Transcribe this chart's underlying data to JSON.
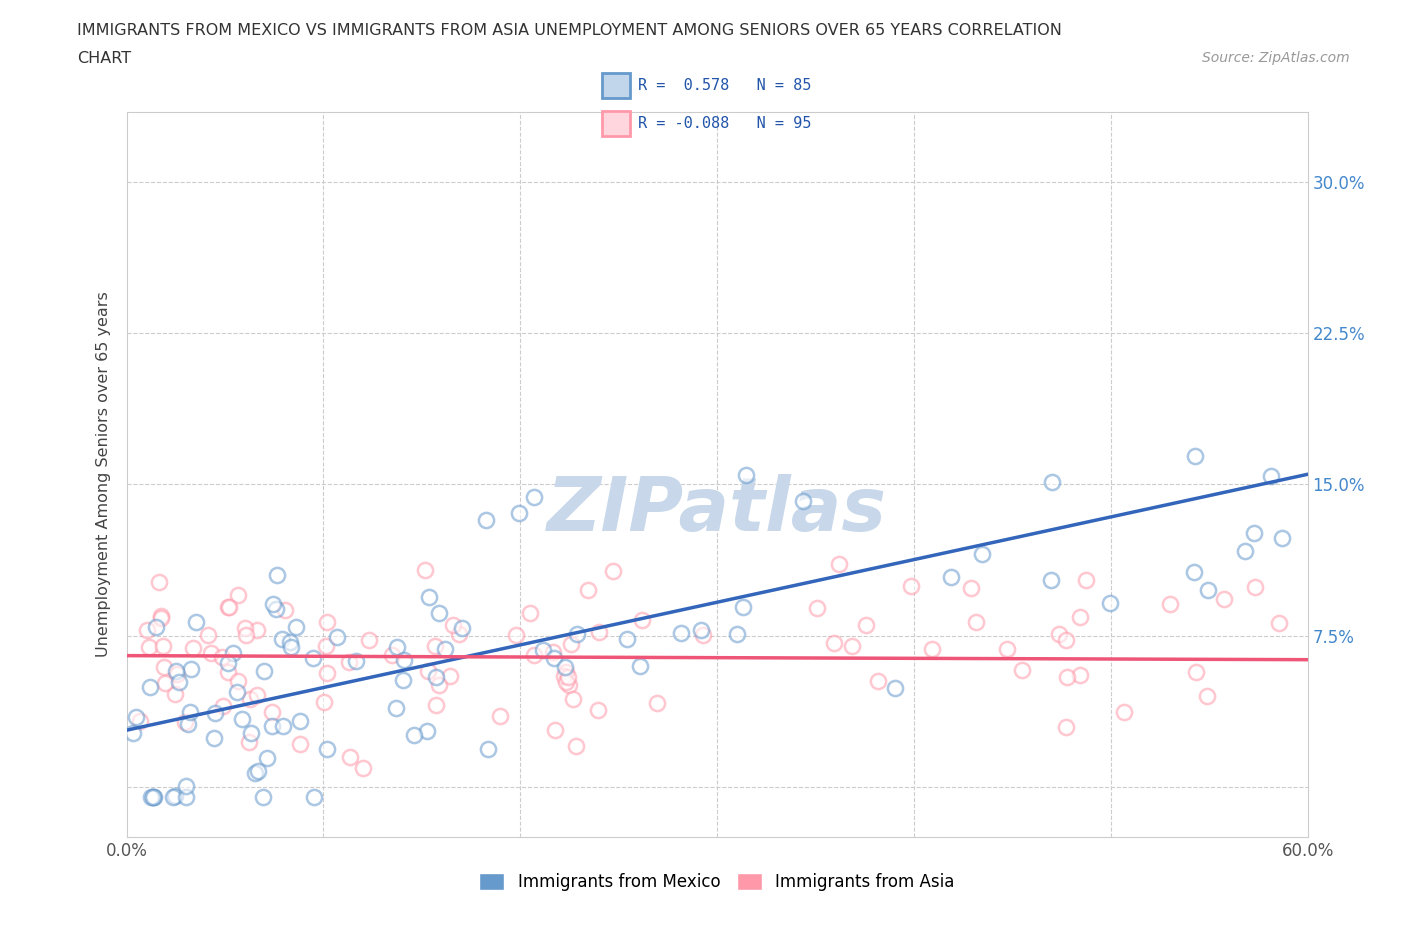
{
  "title_line1": "IMMIGRANTS FROM MEXICO VS IMMIGRANTS FROM ASIA UNEMPLOYMENT AMONG SENIORS OVER 65 YEARS CORRELATION",
  "title_line2": "CHART",
  "source_text": "Source: ZipAtlas.com",
  "ylabel": "Unemployment Among Seniors over 65 years",
  "xlim": [
    0.0,
    0.6
  ],
  "ylim": [
    -0.025,
    0.335
  ],
  "xticks": [
    0.0,
    0.1,
    0.2,
    0.3,
    0.4,
    0.5,
    0.6
  ],
  "xticklabels": [
    "0.0%",
    "",
    "",
    "",
    "",
    "",
    "60.0%"
  ],
  "yticks": [
    0.0,
    0.075,
    0.15,
    0.225,
    0.3
  ],
  "yticklabels_right": [
    "",
    "7.5%",
    "15.0%",
    "22.5%",
    "30.0%"
  ],
  "grid_color": "#cccccc",
  "background_color": "#ffffff",
  "watermark_text": "ZIPatlas",
  "watermark_color": "#d8e4f0",
  "legend_R1": "R =  0.578",
  "legend_N1": "N = 85",
  "legend_R2": "R = -0.088",
  "legend_N2": "N = 95",
  "color_mexico": "#6699cc",
  "color_asia": "#ff99aa",
  "line_color_mexico": "#3366bb",
  "line_color_asia": "#ee5577",
  "mexico_line_x0": 0.0,
  "mexico_line_x1": 0.6,
  "mexico_line_y0": 0.028,
  "mexico_line_y1": 0.155,
  "asia_line_x0": 0.0,
  "asia_line_x1": 0.6,
  "asia_line_y0": 0.065,
  "asia_line_y1": 0.063,
  "scatter_size": 120,
  "scatter_alpha": 0.55,
  "scatter_linewidth": 1.8
}
